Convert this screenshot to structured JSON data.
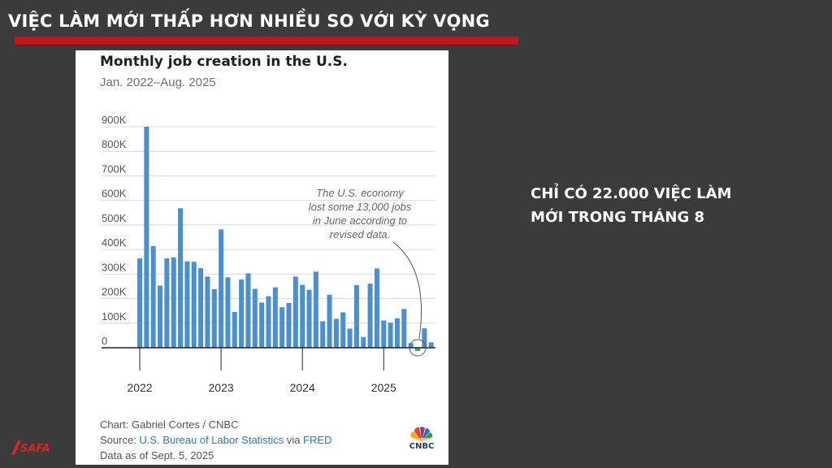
{
  "slide": {
    "title": "VIỆC LÀM MỚI THẤP HƠN NHIỀU SO VỚI KỲ VỌNG",
    "side_text": "CHỈ CÓ 22.000 VIỆC LÀM MỚI TRONG THÁNG 8",
    "brand_logo_text": "SAFA",
    "accent_color": "#c4161c",
    "background_color": "#3b3b3b"
  },
  "chart_data": {
    "type": "bar",
    "title": "Monthly job creation in the U.S.",
    "subtitle": "Jan. 2022–Aug. 2025",
    "xlabel": "",
    "ylabel": "",
    "ylim": [
      -50000,
      900000
    ],
    "yticks": [
      0,
      100000,
      200000,
      300000,
      400000,
      500000,
      600000,
      700000,
      800000,
      900000
    ],
    "ytick_labels": [
      "0",
      "100K",
      "200K",
      "300K",
      "400K",
      "500K",
      "600K",
      "700K",
      "800K",
      "900K"
    ],
    "xtick_labels": [
      "2022",
      "2023",
      "2024",
      "2025"
    ],
    "grid": true,
    "bar_color": "#4a8fd4",
    "highlight_color": "#3aaa6a",
    "categories": [
      "2022-01",
      "2022-02",
      "2022-03",
      "2022-04",
      "2022-05",
      "2022-06",
      "2022-07",
      "2022-08",
      "2022-09",
      "2022-10",
      "2022-11",
      "2022-12",
      "2023-01",
      "2023-02",
      "2023-03",
      "2023-04",
      "2023-05",
      "2023-06",
      "2023-07",
      "2023-08",
      "2023-09",
      "2023-10",
      "2023-11",
      "2023-12",
      "2024-01",
      "2024-02",
      "2024-03",
      "2024-04",
      "2024-05",
      "2024-06",
      "2024-07",
      "2024-08",
      "2024-09",
      "2024-10",
      "2024-11",
      "2024-12",
      "2025-01",
      "2025-02",
      "2025-03",
      "2025-04",
      "2025-05",
      "2025-06",
      "2025-07",
      "2025-08"
    ],
    "values": [
      364000,
      900000,
      414000,
      253000,
      364000,
      368000,
      568000,
      352000,
      350000,
      324000,
      290000,
      239000,
      482000,
      287000,
      146000,
      278000,
      303000,
      240000,
      184000,
      210000,
      246000,
      165000,
      182000,
      290000,
      256000,
      236000,
      310000,
      108000,
      216000,
      118000,
      144000,
      78000,
      255000,
      44000,
      261000,
      323000,
      111000,
      102000,
      120000,
      158000,
      19000,
      -13000,
      79000,
      22000
    ],
    "annotation": "The U.S. economy lost some 13,000 jobs in June according to revised data.",
    "footer": {
      "credit": "Chart: Gabriel Cortes / CNBC",
      "source_prefix": "Source: ",
      "source_link1": "U.S. Bureau of Labor Statistics",
      "source_mid": " via ",
      "source_link2": "FRED",
      "date": "Data as of Sept. 5, 2025"
    },
    "logo_text": "CNBC"
  }
}
